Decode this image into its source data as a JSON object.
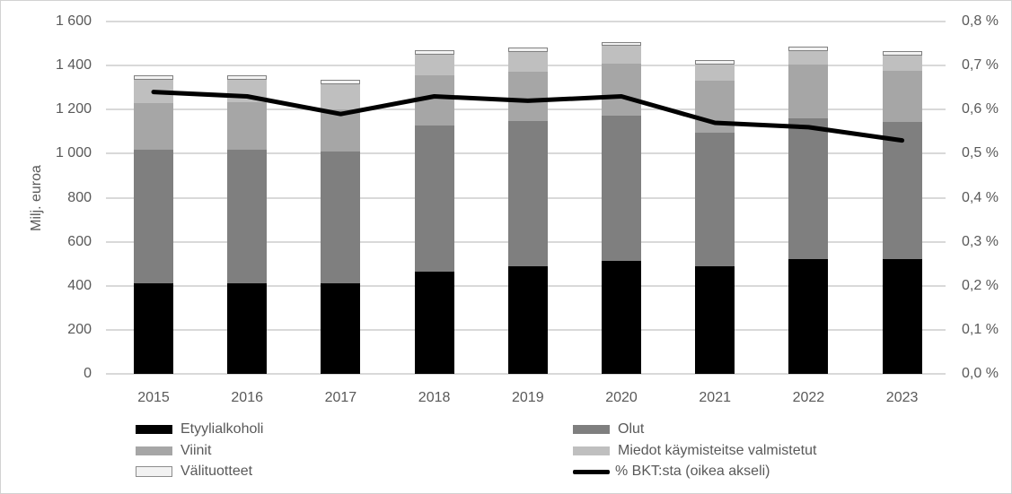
{
  "chart_data": {
    "type": "bar",
    "subtype": "stacked-bars-with-line-overlay",
    "title": "",
    "categories": [
      "2015",
      "2016",
      "2017",
      "2018",
      "2019",
      "2020",
      "2021",
      "2022",
      "2023"
    ],
    "series": [
      {
        "name": "Etyylialkoholi",
        "color": "#000000",
        "values": [
          413,
          413,
          410,
          466,
          490,
          512,
          489,
          520,
          520
        ]
      },
      {
        "name": "Olut",
        "color": "#7f7f7f",
        "values": [
          606,
          603,
          600,
          660,
          658,
          660,
          605,
          642,
          622
        ]
      },
      {
        "name": "Viinit",
        "color": "#a6a6a6",
        "values": [
          210,
          218,
          193,
          228,
          222,
          238,
          238,
          243,
          234
        ]
      },
      {
        "name": "Miedot käymisteitse valmistetut",
        "color": "#bfbfbf",
        "values": [
          108,
          101,
          112,
          97,
          92,
          79,
          74,
          60,
          68
        ]
      },
      {
        "name": "Välituotteet",
        "color": "#f2f2f2",
        "border_color": "#808080",
        "outlined": true,
        "values": [
          20,
          20,
          20,
          19,
          18,
          18,
          19,
          22,
          20
        ]
      }
    ],
    "stack_totals": [
      1357,
      1355,
      1335,
      1470,
      1480,
      1507,
      1425,
      1487,
      1464
    ],
    "line_series": {
      "name": "% BKT:sta (oikea akseli)",
      "color": "#000000",
      "axis": "right",
      "values": [
        0.64,
        0.63,
        0.59,
        0.63,
        0.62,
        0.63,
        0.57,
        0.56,
        0.53
      ]
    },
    "left_axis": {
      "title": "Milj. euroa",
      "min": 0,
      "max": 1600,
      "tick_step": 200,
      "tick_labels": [
        "0",
        "200",
        "400",
        "600",
        "800",
        "1 000",
        "1 200",
        "1 400",
        "1 600"
      ]
    },
    "right_axis": {
      "title": "",
      "min": 0,
      "max": 0.8,
      "tick_step": 0.1,
      "tick_labels": [
        "0,0 %",
        "0,1 %",
        "0,2 %",
        "0,3 %",
        "0,4 %",
        "0,5 %",
        "0,6 %",
        "0,7 %",
        "0,8 %"
      ]
    },
    "grid": true,
    "legend_position": "bottom-two-columns",
    "legend_columns": [
      [
        0,
        2,
        4
      ],
      [
        1,
        3,
        "line"
      ]
    ],
    "colors": {
      "gridline": "#d9d9d9",
      "text": "#595959",
      "background": "#ffffff"
    }
  }
}
